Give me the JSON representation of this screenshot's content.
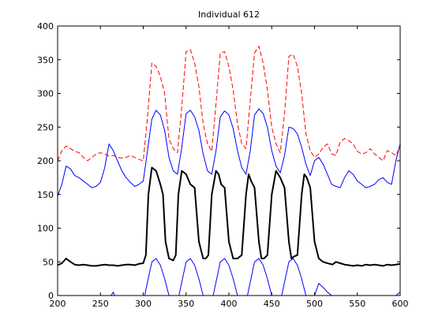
{
  "chart_data": {
    "type": "line",
    "title": "Individual 612",
    "xlabel": "",
    "ylabel": "",
    "xlim": [
      200,
      600
    ],
    "ylim": [
      0,
      400
    ],
    "xticks": [
      200,
      250,
      300,
      350,
      400,
      450,
      500,
      550,
      600
    ],
    "yticks": [
      0,
      50,
      100,
      150,
      200,
      250,
      300,
      350,
      400
    ],
    "grid": false,
    "series": [
      {
        "color": "#0000ff",
        "style": "solid",
        "width": 1,
        "x": [
          200,
          205,
          210,
          215,
          220,
          225,
          230,
          235,
          240,
          245,
          250,
          255,
          260,
          265,
          270,
          275,
          280,
          285,
          290,
          295,
          300,
          305,
          310,
          315,
          320,
          325,
          330,
          335,
          340,
          345,
          350,
          355,
          360,
          365,
          370,
          375,
          380,
          385,
          390,
          395,
          400,
          405,
          410,
          415,
          420,
          425,
          430,
          435,
          440,
          445,
          450,
          455,
          460,
          465,
          470,
          475,
          480,
          485,
          490,
          495,
          500,
          505,
          510,
          515,
          520,
          525,
          530,
          535,
          540,
          545,
          550,
          555,
          560,
          565,
          570,
          575,
          580,
          585,
          590,
          595,
          600
        ],
        "y": [
          148,
          165,
          192,
          188,
          178,
          175,
          170,
          165,
          160,
          162,
          168,
          190,
          225,
          215,
          200,
          185,
          175,
          168,
          162,
          165,
          170,
          215,
          262,
          275,
          268,
          245,
          205,
          185,
          180,
          220,
          270,
          275,
          265,
          245,
          210,
          185,
          180,
          215,
          265,
          274,
          268,
          248,
          215,
          190,
          180,
          215,
          268,
          277,
          270,
          250,
          215,
          192,
          182,
          208,
          250,
          248,
          240,
          220,
          195,
          178,
          200,
          205,
          195,
          180,
          165,
          162,
          160,
          175,
          185,
          180,
          170,
          165,
          160,
          162,
          165,
          172,
          175,
          168,
          165,
          200,
          225
        ]
      },
      {
        "color": "#ff0000",
        "style": "dashed",
        "width": 1,
        "x": [
          200,
          205,
          210,
          215,
          220,
          225,
          230,
          235,
          240,
          245,
          250,
          255,
          260,
          265,
          270,
          275,
          280,
          285,
          290,
          295,
          300,
          305,
          310,
          315,
          320,
          325,
          330,
          335,
          340,
          345,
          350,
          355,
          360,
          365,
          370,
          375,
          380,
          385,
          390,
          395,
          400,
          405,
          410,
          415,
          420,
          425,
          430,
          435,
          440,
          445,
          450,
          455,
          460,
          465,
          470,
          475,
          480,
          485,
          490,
          495,
          500,
          505,
          510,
          515,
          520,
          525,
          530,
          535,
          540,
          545,
          550,
          555,
          560,
          565,
          570,
          575,
          580,
          585,
          590,
          595,
          600
        ],
        "y": [
          200,
          215,
          222,
          218,
          214,
          212,
          205,
          200,
          205,
          210,
          212,
          210,
          207,
          208,
          205,
          204,
          205,
          208,
          205,
          202,
          200,
          265,
          345,
          340,
          325,
          300,
          232,
          218,
          212,
          280,
          362,
          365,
          345,
          310,
          255,
          225,
          214,
          285,
          360,
          362,
          340,
          305,
          255,
          225,
          218,
          290,
          360,
          370,
          345,
          305,
          250,
          225,
          212,
          270,
          355,
          358,
          340,
          300,
          240,
          215,
          205,
          210,
          220,
          225,
          210,
          208,
          228,
          233,
          230,
          225,
          214,
          210,
          212,
          218,
          210,
          205,
          200,
          215,
          212,
          208,
          222
        ]
      },
      {
        "color": "#000000",
        "style": "solid",
        "width": 2,
        "x": [
          200,
          205,
          210,
          215,
          220,
          225,
          230,
          235,
          240,
          245,
          250,
          255,
          260,
          265,
          270,
          275,
          280,
          285,
          290,
          295,
          300,
          303,
          306,
          310,
          315,
          320,
          323,
          326,
          330,
          335,
          338,
          341,
          345,
          350,
          355,
          360,
          365,
          370,
          373,
          376,
          380,
          385,
          388,
          391,
          395,
          400,
          405,
          410,
          415,
          420,
          423,
          426,
          430,
          435,
          438,
          441,
          445,
          450,
          455,
          460,
          465,
          470,
          473,
          476,
          480,
          485,
          488,
          491,
          495,
          500,
          505,
          510,
          515,
          518,
          521,
          525,
          530,
          535,
          540,
          545,
          550,
          555,
          560,
          565,
          570,
          575,
          580,
          585,
          590,
          595,
          600
        ],
        "y": [
          45,
          48,
          55,
          50,
          46,
          45,
          46,
          45,
          44,
          44,
          45,
          46,
          45,
          45,
          44,
          45,
          46,
          46,
          45,
          47,
          48,
          60,
          150,
          190,
          185,
          165,
          150,
          80,
          55,
          52,
          60,
          150,
          185,
          180,
          165,
          160,
          80,
          55,
          55,
          60,
          150,
          185,
          180,
          165,
          160,
          80,
          55,
          55,
          60,
          150,
          180,
          170,
          160,
          80,
          55,
          55,
          60,
          150,
          185,
          175,
          160,
          80,
          55,
          58,
          60,
          150,
          180,
          175,
          160,
          80,
          55,
          50,
          48,
          47,
          46,
          50,
          48,
          46,
          45,
          44,
          45,
          44,
          46,
          45,
          46,
          45,
          44,
          46,
          45,
          46,
          47
        ]
      },
      {
        "color": "#0000ff",
        "style": "solid",
        "width": 1,
        "x": [
          255,
          260,
          265,
          270,
          300,
          305,
          310,
          315,
          320,
          325,
          330,
          335,
          340,
          345,
          350,
          355,
          360,
          365,
          370,
          375,
          380,
          385,
          390,
          395,
          400,
          405,
          410,
          415,
          420,
          425,
          430,
          435,
          440,
          445,
          450,
          455,
          460,
          465,
          470,
          475,
          480,
          485,
          490,
          495,
          500,
          505,
          510,
          515,
          520,
          525,
          530,
          590,
          595,
          600
        ],
        "y": [
          -10,
          -5,
          5,
          -10,
          -10,
          20,
          50,
          55,
          45,
          25,
          0,
          -10,
          -10,
          20,
          50,
          55,
          45,
          25,
          0,
          -10,
          -10,
          20,
          50,
          55,
          45,
          25,
          0,
          -10,
          -10,
          20,
          50,
          55,
          45,
          25,
          0,
          -10,
          -10,
          20,
          50,
          55,
          45,
          25,
          0,
          -10,
          0,
          18,
          12,
          5,
          0,
          -10,
          -10,
          -10,
          0,
          5
        ]
      }
    ]
  }
}
